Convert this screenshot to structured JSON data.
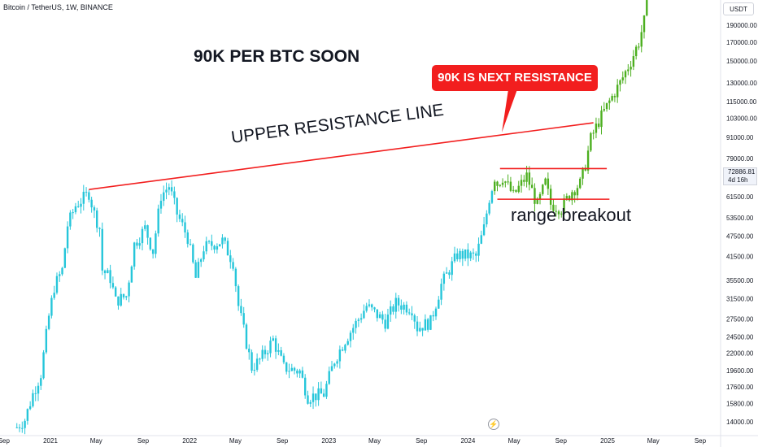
{
  "header": {
    "symbol": "Bitcoin / TetherUS, 1W, BINANCE",
    "currency": "USDT"
  },
  "annotations": {
    "title": "90K PER BTC SOON",
    "upper_resistance": "UPPER RESISTANCE LINE",
    "callout": "90K IS NEXT RESISTANCE",
    "range_breakout": "range breakout"
  },
  "price_badge": {
    "price": "72886.81",
    "countdown": "4d 16h"
  },
  "colors": {
    "up": "#26c6da",
    "down": "#26c6da",
    "recent": "#4caf1f",
    "resistance": "#f21e1e",
    "grid": "#ffffff",
    "axis_text": "#131722"
  },
  "chart_data": {
    "type": "candlestick",
    "scale": "log",
    "ylim": [
      13500,
      215000
    ],
    "y_ticks": [
      14000,
      15800,
      17600,
      19600,
      22000,
      24500,
      27500,
      31500,
      35500,
      41500,
      47500,
      53500,
      61500,
      70000,
      79000,
      91000,
      103000,
      115000,
      130000,
      150000,
      170000,
      190000
    ],
    "y_tick_labels": [
      "14000.00",
      "15800.00",
      "17600.00",
      "19600.00",
      "22000.00",
      "24500.00",
      "27500.00",
      "31500.00",
      "35500.00",
      "41500.00",
      "47500.00",
      "53500.00",
      "61500.00",
      "70000.00",
      "79000.00",
      "91000.00",
      "103000.00",
      "115000.00",
      "130000.00",
      "150000.00",
      "170000.00",
      "190000.00"
    ],
    "x_ticks": [
      "Sep",
      "2021",
      "May",
      "Sep",
      "2022",
      "May",
      "Sep",
      "2023",
      "May",
      "Sep",
      "2024",
      "May",
      "Sep",
      "2025",
      "May",
      "Sep"
    ],
    "x_tick_dates": [
      "2020-09-01",
      "2021-01-01",
      "2021-05-01",
      "2021-09-01",
      "2022-01-01",
      "2022-05-01",
      "2022-09-01",
      "2023-01-01",
      "2023-05-01",
      "2023-09-01",
      "2024-01-01",
      "2024-05-01",
      "2024-09-01",
      "2025-01-01",
      "2025-05-01",
      "2025-09-01"
    ],
    "weekly_close": [
      [
        "2020-10-05",
        13500
      ],
      [
        "2020-10-26",
        14200
      ],
      [
        "2020-11-16",
        16800
      ],
      [
        "2020-12-07",
        19200
      ],
      [
        "2020-12-28",
        28000
      ],
      [
        "2021-01-11",
        34000
      ],
      [
        "2021-02-01",
        38000
      ],
      [
        "2021-02-15",
        51000
      ],
      [
        "2021-03-08",
        58000
      ],
      [
        "2021-04-12",
        63000
      ],
      [
        "2021-04-26",
        55000
      ],
      [
        "2021-05-10",
        50000
      ],
      [
        "2021-05-17",
        38000
      ],
      [
        "2021-06-07",
        36000
      ],
      [
        "2021-06-21",
        31000
      ],
      [
        "2021-07-19",
        32000
      ],
      [
        "2021-08-09",
        45000
      ],
      [
        "2021-09-06",
        50000
      ],
      [
        "2021-09-27",
        43000
      ],
      [
        "2021-10-18",
        62000
      ],
      [
        "2021-11-08",
        66000
      ],
      [
        "2021-11-29",
        55000
      ],
      [
        "2021-12-27",
        47000
      ],
      [
        "2022-01-17",
        36000
      ],
      [
        "2022-02-07",
        44000
      ],
      [
        "2022-03-28",
        46000
      ],
      [
        "2022-04-25",
        40000
      ],
      [
        "2022-05-09",
        30000
      ],
      [
        "2022-06-13",
        20000
      ],
      [
        "2022-07-04",
        21000
      ],
      [
        "2022-08-08",
        24000
      ],
      [
        "2022-09-05",
        20000
      ],
      [
        "2022-10-17",
        19500
      ],
      [
        "2022-11-07",
        16500
      ],
      [
        "2022-12-19",
        16800
      ],
      [
        "2023-01-16",
        21000
      ],
      [
        "2023-02-13",
        24000
      ],
      [
        "2023-03-20",
        27500
      ],
      [
        "2023-04-10",
        30000
      ],
      [
        "2023-05-29",
        27000
      ],
      [
        "2023-06-26",
        30500
      ],
      [
        "2023-08-07",
        29500
      ],
      [
        "2023-08-21",
        26000
      ],
      [
        "2023-09-25",
        27000
      ],
      [
        "2023-10-23",
        34500
      ],
      [
        "2023-12-04",
        42000
      ],
      [
        "2024-01-22",
        41500
      ],
      [
        "2024-02-12",
        50000
      ],
      [
        "2024-02-26",
        61000
      ],
      [
        "2024-03-11",
        70000
      ],
      [
        "2024-03-18",
        67000
      ],
      [
        "2024-04-01",
        70000
      ],
      [
        "2024-04-29",
        62000
      ],
      [
        "2024-06-03",
        70500
      ],
      [
        "2024-07-01",
        58000
      ],
      [
        "2024-07-22",
        67500
      ],
      [
        "2024-08-05",
        58500
      ],
      [
        "2024-09-02",
        57000
      ],
      [
        "2024-09-30",
        64000
      ],
      [
        "2024-10-21",
        67000
      ],
      [
        "2024-11-04",
        76000
      ],
      [
        "2024-11-18",
        90000
      ],
      [
        "2024-12-09",
        101000
      ],
      [
        "2025-01-06",
        115000
      ],
      [
        "2025-02-03",
        130000
      ],
      [
        "2025-03-03",
        150000
      ],
      [
        "2025-03-24",
        170000
      ],
      [
        "2025-04-07",
        195000
      ],
      [
        "2025-04-14",
        215000
      ]
    ],
    "lines": [
      {
        "name": "upper_resistance",
        "from": [
          "2021-04-12",
          64500
        ],
        "to": [
          "2024-11-25",
          100000
        ]
      },
      {
        "name": "range_top",
        "from": [
          "2024-03-25",
          74000
        ],
        "to": [
          "2024-12-30",
          74000
        ]
      },
      {
        "name": "range_bottom",
        "from": [
          "2024-03-18",
          60500
        ],
        "to": [
          "2025-01-06",
          60500
        ]
      }
    ]
  }
}
